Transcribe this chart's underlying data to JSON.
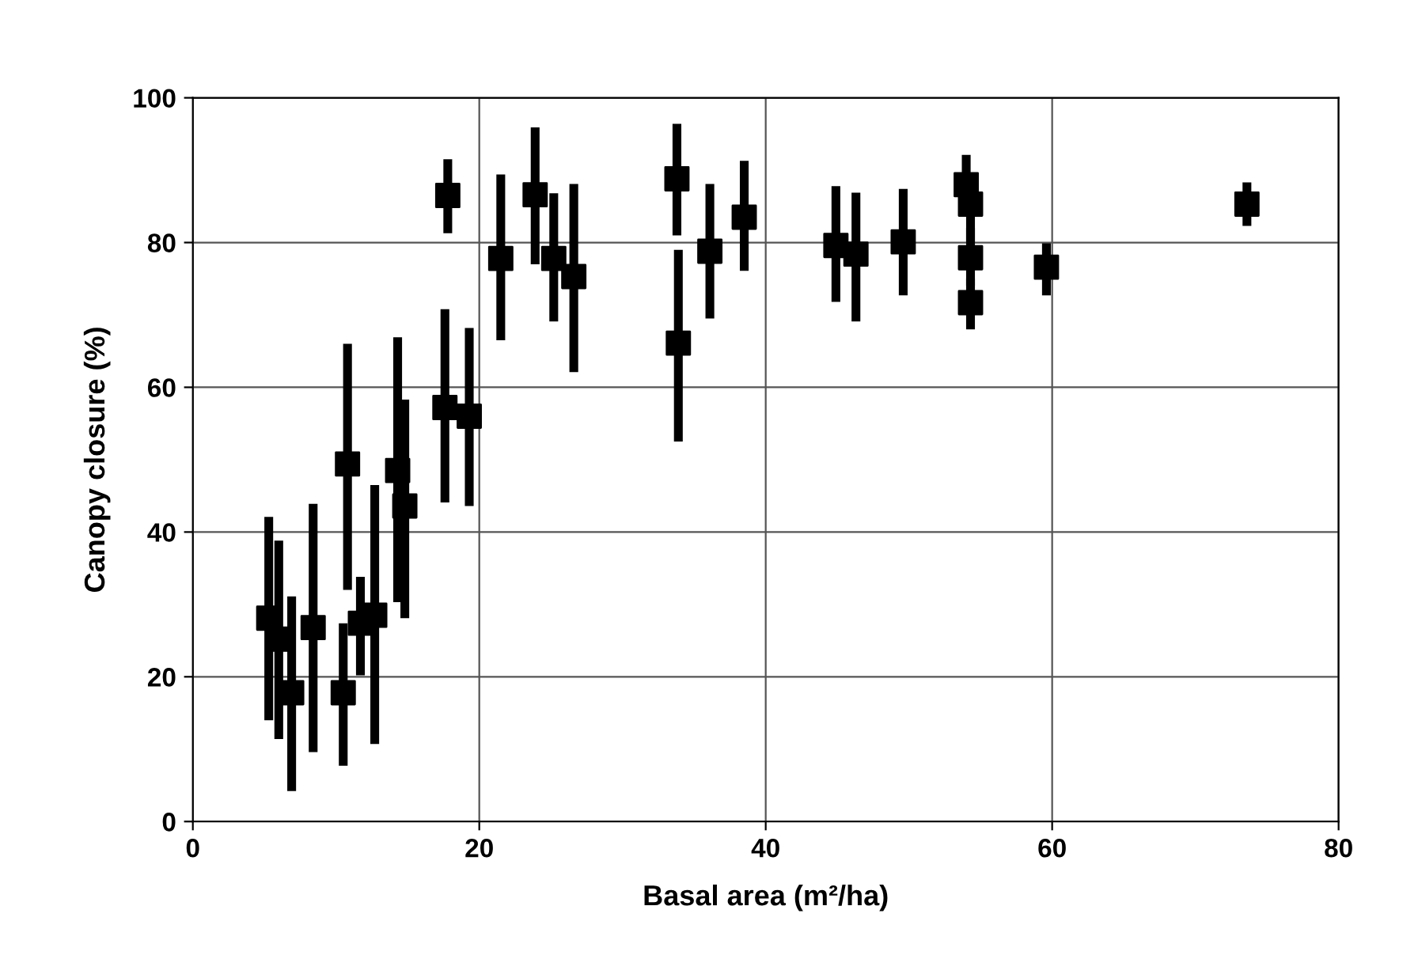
{
  "chart_data": {
    "type": "scatter",
    "xlabel": "Basal area (m²/ha)",
    "ylabel": "Canopy closure (%)",
    "xlim": [
      0,
      80
    ],
    "ylim": [
      0,
      100
    ],
    "xticks": [
      0,
      20,
      40,
      60,
      80
    ],
    "yticks": [
      0,
      20,
      40,
      60,
      80,
      100
    ],
    "grid": true,
    "marker": "square",
    "legend": false,
    "series": [
      {
        "color": "#000000",
        "x": [
          5.3,
          6.0,
          6.9,
          8.4,
          10.5,
          10.8,
          11.7,
          12.7,
          14.3,
          14.8,
          17.6,
          19.3,
          17.8,
          21.5,
          23.9,
          25.2,
          26.6,
          33.8,
          33.9,
          36.1,
          38.5,
          44.9,
          46.3,
          49.6,
          54.0,
          54.3,
          54.3,
          54.3,
          59.6,
          73.6
        ],
        "values": [
          28.1,
          25.2,
          17.8,
          26.8,
          17.8,
          49.4,
          27.4,
          28.5,
          48.5,
          43.6,
          57.2,
          56.0,
          86.5,
          77.8,
          86.6,
          77.8,
          75.3,
          88.8,
          66.1,
          78.8,
          83.5,
          79.6,
          78.4,
          80.1,
          88.0,
          85.3,
          77.9,
          71.7,
          76.6,
          85.3
        ],
        "errors": [
          [
            14.0,
            42.1
          ],
          [
            11.4,
            38.8
          ],
          [
            4.2,
            31.1
          ],
          [
            9.6,
            43.9
          ],
          [
            7.7,
            27.4
          ],
          [
            32.0,
            66.0
          ],
          [
            20.2,
            33.8
          ],
          [
            10.7,
            46.5
          ],
          [
            30.3,
            66.9
          ],
          [
            28.1,
            58.3
          ],
          [
            44.1,
            70.8
          ],
          [
            43.6,
            68.2
          ],
          [
            81.3,
            91.5
          ],
          [
            66.5,
            89.4
          ],
          [
            77.0,
            95.9
          ],
          [
            69.1,
            86.8
          ],
          [
            62.1,
            88.1
          ],
          [
            81.0,
            96.4
          ],
          [
            52.5,
            79.0
          ],
          [
            69.5,
            88.1
          ],
          [
            76.1,
            91.3
          ],
          [
            71.8,
            87.8
          ],
          [
            69.1,
            86.9
          ],
          [
            72.7,
            87.4
          ],
          [
            88.0,
            92.1
          ],
          [
            80.0,
            85.3
          ],
          [
            74.0,
            82.0
          ],
          [
            68.0,
            75.0
          ],
          [
            72.7,
            79.9
          ],
          [
            82.3,
            88.3
          ]
        ]
      }
    ]
  }
}
